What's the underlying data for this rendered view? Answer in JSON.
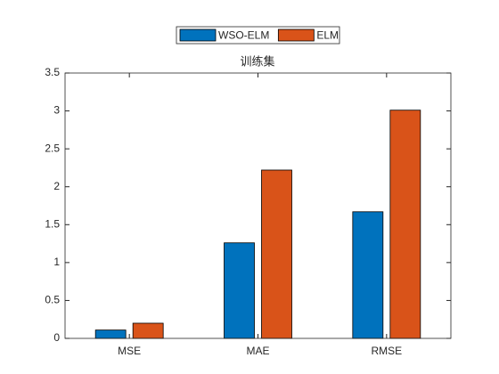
{
  "chart_data": {
    "type": "bar",
    "title": "训练集",
    "categories": [
      "MSE",
      "MAE",
      "RMSE"
    ],
    "series": [
      {
        "name": "WSO-ELM",
        "color": "#0072bd",
        "values": [
          0.11,
          1.26,
          1.67
        ]
      },
      {
        "name": "ELM",
        "color": "#d95319",
        "values": [
          0.2,
          2.22,
          3.01
        ]
      }
    ],
    "ylim": [
      0,
      3.5
    ],
    "yticks": [
      0,
      0.5,
      1,
      1.5,
      2,
      2.5,
      3,
      3.5
    ],
    "legend": "top",
    "grid": false
  }
}
